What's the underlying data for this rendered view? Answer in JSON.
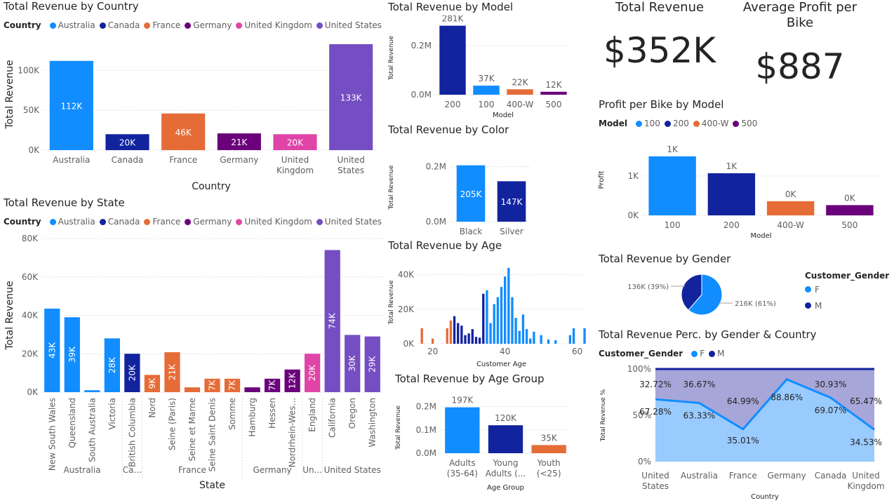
{
  "colors": {
    "Australia": "#118dff",
    "Canada": "#12239e",
    "France": "#e66c37",
    "Germany": "#6b007b",
    "United Kingdom": "#e044a7",
    "United States": "#744ec2",
    "F": "#118dff",
    "M": "#12239e",
    "100": "#118dff",
    "200": "#12239e",
    "400-W": "#e66c37",
    "500": "#6b007b",
    "text": "#252423",
    "axis": "#605e5c"
  },
  "kpis": {
    "total_revenue": {
      "title": "Total Revenue",
      "value": "$352K"
    },
    "avg_profit": {
      "title": "Average Profit per Bike",
      "value": "$887"
    }
  },
  "visuals": {
    "country": {
      "title": "Total Revenue by Country",
      "legend_title": "Country",
      "legend": [
        "Australia",
        "Canada",
        "France",
        "Germany",
        "United Kingdom",
        "United States"
      ]
    },
    "state": {
      "title": "Total Revenue by State",
      "legend_title": "Country",
      "legend": [
        "Australia",
        "Canada",
        "France",
        "Germany",
        "United Kingdom",
        "United States"
      ]
    },
    "model": {
      "title": "Total Revenue by Model"
    },
    "color": {
      "title": "Total Revenue by Color"
    },
    "age": {
      "title": "Total Revenue by Age"
    },
    "agegroup": {
      "title": "Total Revenue by Age Group"
    },
    "profit": {
      "title": "Profit per Bike by Model",
      "legend_title": "Model",
      "legend": [
        "100",
        "200",
        "400-W",
        "500"
      ]
    },
    "gender": {
      "title": "Total Revenue by Gender",
      "legend_title": "Customer_Gender",
      "legend": [
        "F",
        "M"
      ]
    },
    "perc": {
      "title": "Total Revenue Perc. by Gender & Country",
      "legend_title": "Customer_Gender",
      "legend": [
        "F",
        "M"
      ]
    }
  },
  "chart_data": [
    {
      "id": "country",
      "type": "bar",
      "xlabel": "Country",
      "ylabel": "Total Revenue",
      "ylim": [
        0,
        140000
      ],
      "yticks": [
        {
          "v": 0,
          "l": "0K"
        },
        {
          "v": 50000,
          "l": "50K"
        },
        {
          "v": 100000,
          "l": "100K"
        }
      ],
      "categories": [
        "Australia",
        "Canada",
        "France",
        "Germany",
        "United Kingdom",
        "United States"
      ],
      "values": [
        112000,
        20000,
        46000,
        21000,
        20000,
        133000
      ],
      "labels": [
        "112K",
        "20K",
        "46K",
        "21K",
        "20K",
        "133K"
      ]
    },
    {
      "id": "state",
      "type": "bar",
      "xlabel": "State",
      "ylabel": "Total Revenue",
      "ylim": [
        0,
        80000
      ],
      "yticks": [
        {
          "v": 0,
          "l": "0K"
        },
        {
          "v": 20000,
          "l": "20K"
        },
        {
          "v": 40000,
          "l": "40K"
        },
        {
          "v": 60000,
          "l": "60K"
        },
        {
          "v": 80000,
          "l": "80K"
        }
      ],
      "groups": [
        {
          "name": "Australia",
          "label": "Australia",
          "start": 0,
          "end": 4
        },
        {
          "name": "Canada",
          "label": "Ca...",
          "start": 4,
          "end": 5
        },
        {
          "name": "France",
          "label": "France",
          "start": 5,
          "end": 10
        },
        {
          "name": "Germany",
          "label": "Germany",
          "start": 10,
          "end": 13
        },
        {
          "name": "United Kingdom",
          "label": "Un...",
          "start": 13,
          "end": 14
        },
        {
          "name": "United States",
          "label": "United States",
          "start": 14,
          "end": 17
        }
      ],
      "categories": [
        "New South Wales",
        "Queensland",
        "South Australia",
        "Victoria",
        "British Columbia",
        "Nord",
        "Seine (Paris)",
        "Seine et Marne",
        "Seine Saint Denis",
        "Somme",
        "Hamburg",
        "Hessen",
        "Nordrhein-Wes...",
        "England",
        "California",
        "Oregon",
        "Washington"
      ],
      "country": [
        "Australia",
        "Australia",
        "Australia",
        "Australia",
        "Canada",
        "France",
        "France",
        "France",
        "France",
        "France",
        "Germany",
        "Germany",
        "Germany",
        "United Kingdom",
        "United States",
        "United States",
        "United States"
      ],
      "values": [
        43500,
        39000,
        1000,
        28000,
        20000,
        9000,
        20800,
        2500,
        7000,
        7000,
        2500,
        7000,
        11800,
        20000,
        74000,
        29800,
        29000
      ],
      "labels": [
        "43K",
        "39K",
        "",
        "28K",
        "20K",
        "9K",
        "21K",
        "",
        "7K",
        "7K",
        "",
        "7K",
        "12K",
        "20K",
        "74K",
        "30K",
        "29K"
      ]
    },
    {
      "id": "model",
      "type": "bar",
      "xlabel": "Model",
      "ylabel": "Total Revenue",
      "ylim": [
        0,
        300000
      ],
      "yticks": [
        {
          "v": 0,
          "l": "0.0M"
        },
        {
          "v": 200000,
          "l": "0.2M"
        }
      ],
      "categories": [
        "200",
        "100",
        "400-W",
        "500"
      ],
      "values": [
        281000,
        37000,
        22000,
        12000
      ],
      "labels": [
        "281K",
        "37K",
        "22K",
        "12K"
      ],
      "colors": [
        "#12239e",
        "#118dff",
        "#e66c37",
        "#6b007b"
      ]
    },
    {
      "id": "color",
      "type": "bar",
      "xlabel": "",
      "ylabel": "Total Revenue",
      "ylim": [
        0,
        250000
      ],
      "yticks": [
        {
          "v": 0,
          "l": "0.0M"
        },
        {
          "v": 200000,
          "l": "0.2M"
        }
      ],
      "categories": [
        "Black",
        "Silver"
      ],
      "values": [
        205000,
        147000
      ],
      "labels": [
        "205K",
        "147K"
      ],
      "colors": [
        "#118dff",
        "#12239e"
      ]
    },
    {
      "id": "age",
      "type": "bar",
      "xlabel": "Customer Age",
      "ylabel": "Total Revenue",
      "xlim": [
        16,
        62
      ],
      "ylim": [
        0,
        48000
      ],
      "xticks": [
        20,
        40,
        60
      ],
      "yticks": [
        {
          "v": 0,
          "l": "0K"
        },
        {
          "v": 20000,
          "l": "20K"
        },
        {
          "v": 40000,
          "l": "40K"
        }
      ],
      "points": [
        [
          17,
          9000,
          "Y"
        ],
        [
          20,
          3000,
          "Y"
        ],
        [
          24,
          9000,
          "Y"
        ],
        [
          25,
          13500,
          "Y"
        ],
        [
          26,
          16000,
          "M"
        ],
        [
          27,
          12000,
          "M"
        ],
        [
          28,
          10500,
          "M"
        ],
        [
          29,
          5000,
          "M"
        ],
        [
          30,
          6000,
          "M"
        ],
        [
          31,
          8500,
          "M"
        ],
        [
          32,
          4000,
          "M"
        ],
        [
          33,
          3500,
          "M"
        ],
        [
          34,
          29000,
          "M"
        ],
        [
          35,
          31000,
          "A"
        ],
        [
          36,
          12000,
          "A"
        ],
        [
          37,
          23000,
          "A"
        ],
        [
          38,
          27000,
          "A"
        ],
        [
          39,
          33000,
          "A"
        ],
        [
          40,
          39000,
          "A"
        ],
        [
          41,
          44000,
          "A"
        ],
        [
          42,
          27000,
          "A"
        ],
        [
          43,
          15000,
          "A"
        ],
        [
          44,
          7500,
          "A"
        ],
        [
          45,
          17000,
          "A"
        ],
        [
          46,
          8500,
          "A"
        ],
        [
          47,
          3000,
          "A"
        ],
        [
          48,
          7000,
          "A"
        ],
        [
          50,
          5000,
          "A"
        ],
        [
          52,
          2500,
          "A"
        ],
        [
          54,
          2000,
          "A"
        ],
        [
          58,
          5000,
          "A"
        ],
        [
          59,
          9000,
          "A"
        ],
        [
          62,
          9000,
          "A"
        ]
      ],
      "group_colors": {
        "Y": "#e66c37",
        "M": "#12239e",
        "A": "#118dff"
      }
    },
    {
      "id": "agegroup",
      "type": "bar",
      "xlabel": "Age Group",
      "ylabel": "Total Revenue",
      "ylim": [
        0,
        220000
      ],
      "yticks": [
        {
          "v": 0,
          "l": "0.0M"
        },
        {
          "v": 100000,
          "l": "0.1M"
        },
        {
          "v": 200000,
          "l": "0.2M"
        }
      ],
      "categories": [
        "Adults (35-64)",
        "Young Adults (...",
        "Youth (<25)"
      ],
      "values": [
        197000,
        120000,
        35000
      ],
      "labels": [
        "197K",
        "120K",
        "35K"
      ],
      "colors": [
        "#118dff",
        "#12239e",
        "#e66c37"
      ]
    },
    {
      "id": "profit",
      "type": "bar",
      "xlabel": "Model",
      "ylabel": "Profit",
      "ylim": [
        0,
        1800
      ],
      "yticks": [
        {
          "v": 0,
          "l": "0K"
        },
        {
          "v": 1000,
          "l": "1K"
        }
      ],
      "categories": [
        "100",
        "200",
        "400-W",
        "500"
      ],
      "values": [
        1500,
        1070,
        360,
        260
      ],
      "labels": [
        "1K",
        "1K",
        "0K",
        "0K"
      ],
      "colors": [
        "#118dff",
        "#12239e",
        "#e66c37",
        "#6b007b"
      ]
    },
    {
      "id": "gender",
      "type": "pie",
      "categories": [
        "F",
        "M"
      ],
      "values": [
        216000,
        136000
      ],
      "labels": [
        "216K (61%)",
        "136K (39%)"
      ],
      "colors": [
        "#118dff",
        "#12239e"
      ]
    },
    {
      "id": "perc",
      "type": "area",
      "xlabel": "Country",
      "ylabel": "Total Revenue %",
      "ylim": [
        0,
        100
      ],
      "yticks": [
        {
          "v": 0,
          "l": "0%"
        },
        {
          "v": 50,
          "l": "50%"
        },
        {
          "v": 100,
          "l": "100%"
        }
      ],
      "categories": [
        "United States",
        "Australia",
        "France",
        "Germany",
        "Canada",
        "United Kingdom"
      ],
      "series": [
        {
          "name": "F",
          "values": [
            67.28,
            63.33,
            35.01,
            88.86,
            69.07,
            34.53
          ],
          "labels": [
            "67.28%",
            "63.33%",
            "35.01%",
            "88.86%",
            "69.07%",
            "34.53%"
          ]
        },
        {
          "name": "M",
          "values": [
            32.72,
            36.67,
            64.99,
            11.14,
            30.93,
            65.47
          ],
          "labels": [
            "32.72%",
            "36.67%",
            "64.99%",
            "",
            "30.93%",
            "65.47%"
          ]
        }
      ]
    }
  ]
}
